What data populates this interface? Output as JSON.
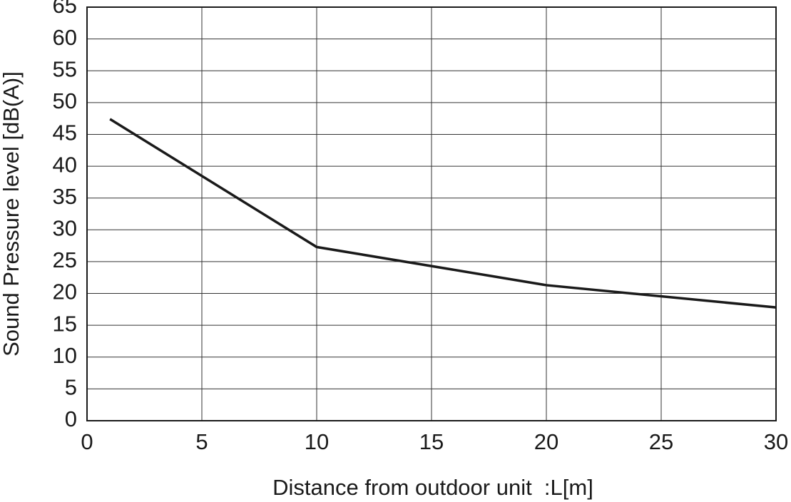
{
  "chart_data": {
    "type": "line",
    "xlabel": "Distance from outdoor unit  :L[m]",
    "ylabel": "Sound Pressure level [dB(A)]",
    "x": [
      1,
      10,
      20,
      30
    ],
    "series": [
      {
        "color": "#1a1a1a",
        "values": [
          47.4,
          27.3,
          21.3,
          17.8
        ]
      }
    ],
    "xlim": [
      0,
      30
    ],
    "xticks": [
      0,
      5,
      10,
      15,
      20,
      25,
      30
    ],
    "ylim": [
      0,
      65
    ],
    "yticks": [
      0,
      5,
      10,
      15,
      20,
      25,
      30,
      35,
      40,
      45,
      50,
      55,
      60,
      65
    ],
    "grid": true
  }
}
